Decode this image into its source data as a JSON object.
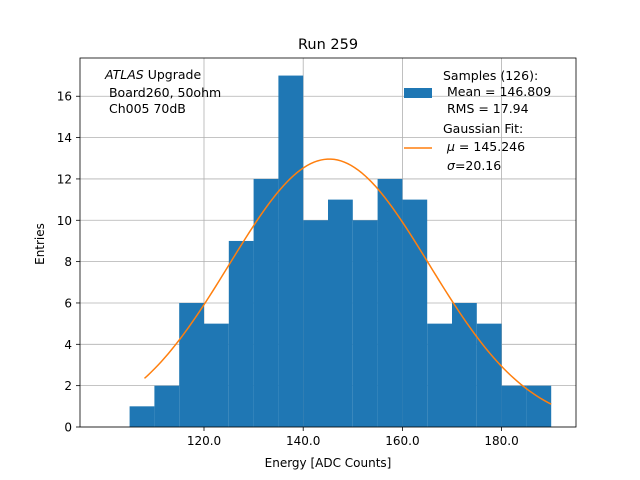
{
  "chart_data": {
    "type": "bar",
    "title": "Run 259",
    "xlabel": "Energy [ADC Counts]",
    "ylabel": "Entries",
    "xlim": [
      95,
      195
    ],
    "ylim": [
      0,
      17.85
    ],
    "grid": true,
    "xticks": [
      120,
      140,
      160,
      180
    ],
    "xtick_labels": [
      "120.0",
      "140.0",
      "160.0",
      "180.0"
    ],
    "yticks": [
      0,
      2,
      4,
      6,
      8,
      10,
      12,
      14,
      16
    ],
    "yticks_labels": [
      "0",
      "2",
      "4",
      "6",
      "8",
      "10",
      "12",
      "14",
      "16"
    ],
    "histogram": {
      "name": "Samples (126)",
      "color": "#1f77b4",
      "bins": [
        {
          "x0": 105,
          "x1": 110,
          "count": 1
        },
        {
          "x0": 110,
          "x1": 115,
          "count": 2
        },
        {
          "x0": 115,
          "x1": 120,
          "count": 6
        },
        {
          "x0": 120,
          "x1": 125,
          "count": 5
        },
        {
          "x0": 125,
          "x1": 130,
          "count": 9
        },
        {
          "x0": 130,
          "x1": 135,
          "count": 12
        },
        {
          "x0": 135,
          "x1": 140,
          "count": 17
        },
        {
          "x0": 140,
          "x1": 145,
          "count": 10
        },
        {
          "x0": 145,
          "x1": 150,
          "count": 11
        },
        {
          "x0": 150,
          "x1": 155,
          "count": 10
        },
        {
          "x0": 155,
          "x1": 160,
          "count": 12
        },
        {
          "x0": 160,
          "x1": 165,
          "count": 11
        },
        {
          "x0": 165,
          "x1": 170,
          "count": 5
        },
        {
          "x0": 170,
          "x1": 175,
          "count": 6
        },
        {
          "x0": 175,
          "x1": 180,
          "count": 5
        },
        {
          "x0": 180,
          "x1": 185,
          "count": 2
        },
        {
          "x0": 185,
          "x1": 190,
          "count": 2
        }
      ]
    },
    "fit": {
      "name": "Gaussian Fit",
      "color": "#ff7f0e",
      "amplitude": 12.96,
      "mu": 145.246,
      "sigma": 20.16,
      "x_range": [
        108,
        190
      ]
    },
    "legend": {
      "position": "top-right",
      "samples_lines": [
        "Samples (126):",
        " Mean = 146.809",
        " RMS = 17.94"
      ],
      "fit_title": "Gaussian Fit:",
      "fit_mu_symbol": "μ",
      "fit_mu_value": " = 145.246",
      "fit_sigma_symbol": "σ",
      "fit_sigma_value": "=20.16"
    },
    "annotation": {
      "italic": "ATLAS",
      "rest": " Upgrade",
      "line2": " Board260, 50ohm",
      "line3": " Ch005 70dB"
    }
  }
}
